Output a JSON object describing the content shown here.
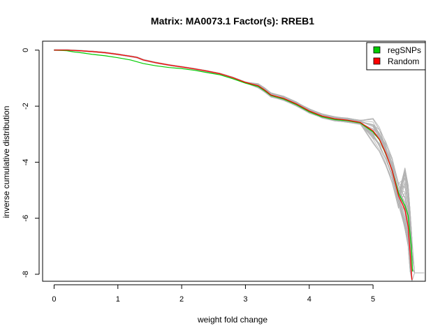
{
  "chart_data": {
    "type": "line",
    "title": "Matrix: MA0073.1 Factor(s): RREB1",
    "xlabel": "weight fold change",
    "ylabel": "inverse cumulative distribution",
    "xlim": [
      -0.18,
      5.82
    ],
    "ylim": [
      -8.25,
      0.32
    ],
    "x_ticks": [
      0,
      1,
      2,
      3,
      4,
      5
    ],
    "x_tick_labels": [
      "0",
      "1",
      "2",
      "3",
      "4",
      "5"
    ],
    "y_ticks": [
      0,
      -2,
      -4,
      -6,
      -8
    ],
    "y_tick_labels": [
      "0",
      "-2",
      "-4",
      "-6",
      "-8"
    ],
    "legend_position": "top-right",
    "legend": [
      {
        "label": "regSNPs",
        "color": "#00cc00"
      },
      {
        "label": "Random",
        "color": "#ff0000"
      }
    ],
    "background_series_color": "#b3b3b3",
    "series": [
      {
        "name": "regSNPs",
        "color": "#00cc00",
        "points": [
          [
            0,
            0
          ],
          [
            0.2,
            -0.02
          ],
          [
            0.3,
            -0.06
          ],
          [
            0.45,
            -0.1
          ],
          [
            0.6,
            -0.15
          ],
          [
            0.8,
            -0.2
          ],
          [
            1.0,
            -0.27
          ],
          [
            1.2,
            -0.35
          ],
          [
            1.4,
            -0.48
          ],
          [
            1.6,
            -0.56
          ],
          [
            1.8,
            -0.62
          ],
          [
            2.0,
            -0.66
          ],
          [
            2.2,
            -0.72
          ],
          [
            2.4,
            -0.8
          ],
          [
            2.6,
            -0.88
          ],
          [
            2.8,
            -1.02
          ],
          [
            3.0,
            -1.18
          ],
          [
            3.2,
            -1.3
          ],
          [
            3.3,
            -1.45
          ],
          [
            3.4,
            -1.62
          ],
          [
            3.6,
            -1.75
          ],
          [
            3.8,
            -1.95
          ],
          [
            4.0,
            -2.2
          ],
          [
            4.2,
            -2.38
          ],
          [
            4.4,
            -2.48
          ],
          [
            4.6,
            -2.52
          ],
          [
            4.8,
            -2.6
          ],
          [
            5.0,
            -2.92
          ],
          [
            5.1,
            -3.2
          ],
          [
            5.2,
            -3.7
          ],
          [
            5.3,
            -4.3
          ],
          [
            5.4,
            -5.1
          ],
          [
            5.5,
            -5.55
          ],
          [
            5.55,
            -5.9
          ],
          [
            5.6,
            -7.0
          ],
          [
            5.62,
            -7.9
          ]
        ]
      },
      {
        "name": "Random",
        "color": "#ff0000",
        "points": [
          [
            0,
            0
          ],
          [
            0.2,
            0
          ],
          [
            0.4,
            -0.02
          ],
          [
            0.6,
            -0.05
          ],
          [
            0.8,
            -0.09
          ],
          [
            1.0,
            -0.15
          ],
          [
            1.2,
            -0.22
          ],
          [
            1.3,
            -0.26
          ],
          [
            1.4,
            -0.35
          ],
          [
            1.6,
            -0.45
          ],
          [
            1.8,
            -0.53
          ],
          [
            2.0,
            -0.6
          ],
          [
            2.2,
            -0.67
          ],
          [
            2.4,
            -0.75
          ],
          [
            2.6,
            -0.84
          ],
          [
            2.8,
            -0.98
          ],
          [
            3.0,
            -1.15
          ],
          [
            3.2,
            -1.27
          ],
          [
            3.3,
            -1.42
          ],
          [
            3.4,
            -1.6
          ],
          [
            3.6,
            -1.72
          ],
          [
            3.8,
            -1.92
          ],
          [
            4.0,
            -2.17
          ],
          [
            4.2,
            -2.35
          ],
          [
            4.4,
            -2.45
          ],
          [
            4.6,
            -2.5
          ],
          [
            4.8,
            -2.58
          ],
          [
            5.0,
            -2.88
          ],
          [
            5.1,
            -3.18
          ],
          [
            5.2,
            -3.68
          ],
          [
            5.3,
            -4.3
          ],
          [
            5.4,
            -5.2
          ],
          [
            5.5,
            -5.7
          ],
          [
            5.55,
            -6.3
          ],
          [
            5.58,
            -7.2
          ],
          [
            5.61,
            -8.2
          ]
        ]
      }
    ]
  }
}
